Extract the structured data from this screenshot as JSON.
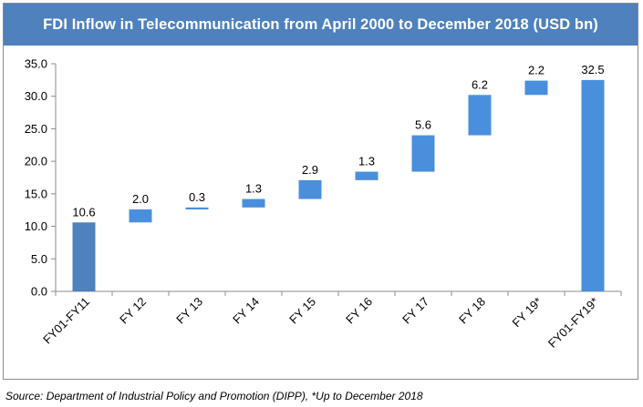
{
  "chart_data": {
    "type": "bar",
    "subtype": "waterfall",
    "title": "FDI Inflow in Telecommunication from April 2000 to December 2018 (USD bn)",
    "categories": [
      "FY01-FY11",
      "FY 12",
      "FY 13",
      "FY 14",
      "FY 15",
      "FY 16",
      "FY 17",
      "FY 18",
      "FY 19*",
      "FY01-FY19*"
    ],
    "values": [
      10.6,
      2.0,
      0.3,
      1.3,
      2.9,
      1.3,
      5.6,
      6.2,
      2.2,
      32.5
    ],
    "data_labels": [
      "10.6",
      "2.0",
      "0.3",
      "1.3",
      "2.9",
      "1.3",
      "5.6",
      "6.2",
      "2.2",
      "32.5"
    ],
    "bar_kinds": [
      "total",
      "increment",
      "increment",
      "increment",
      "increment",
      "increment",
      "increment",
      "increment",
      "increment",
      "total"
    ],
    "ylim": [
      0,
      35
    ],
    "y_ticks": [
      "0.0",
      "5.0",
      "10.0",
      "15.0",
      "20.0",
      "25.0",
      "30.0",
      "35.0"
    ],
    "xlabel": "",
    "ylabel": "",
    "grid": false,
    "colors": {
      "first_total": "#4f81bd",
      "increment": "#4a8fdc",
      "title_bg": "#4e81bd"
    }
  },
  "source_note": "Source: Department of Industrial Policy and Promotion (DIPP), *Up to December 2018"
}
